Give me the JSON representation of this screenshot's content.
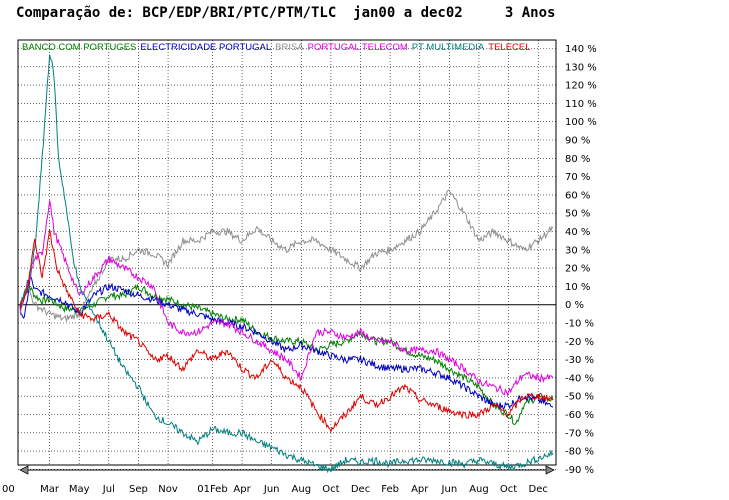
{
  "title": "Comparação de: BCP/EDP/BRI/PTC/PTM/TLC  jan00 a dec02     3 Anos",
  "chart_data": {
    "type": "line",
    "title": "Comparação de: BCP/EDP/BRI/PTC/PTM/TLC  jan00 a dec02     3 Anos",
    "xlabel": "",
    "ylabel": "",
    "ylim": [
      -90,
      145
    ],
    "y_ticks": [
      "140 %",
      "130 %",
      "120 %",
      "110 %",
      "100 %",
      "90 %",
      "80 %",
      "70 %",
      "60 %",
      "50 %",
      "40 %",
      "30 %",
      "20 %",
      "10 %",
      "0 %",
      "-10 %",
      "-20 %",
      "-30 %",
      "-40 %",
      "-50 %",
      "-60 %",
      "-70 %",
      "-80 %",
      "-90 %"
    ],
    "x_ticks": [
      "00",
      "Mar",
      "May",
      "Jul",
      "Sep",
      "Nov",
      "01Feb",
      "Apr",
      "Jun",
      "Aug",
      "Oct",
      "Dec",
      "Feb",
      "Apr",
      "Jun",
      "Aug",
      "Oct",
      "Dec"
    ],
    "grid": true,
    "legend_position": "top-left",
    "x_months": [
      0,
      2,
      4,
      6,
      8,
      10,
      13,
      15,
      17,
      19,
      21,
      23,
      25,
      27,
      29,
      31,
      33,
      35,
      36
    ],
    "series": [
      {
        "name": "BANCO COM PORTUGES",
        "color": "#008000",
        "values": [
          [
            0,
            0
          ],
          [
            0.5,
            12
          ],
          [
            1,
            5
          ],
          [
            1.5,
            2
          ],
          [
            2,
            3
          ],
          [
            3,
            -2
          ],
          [
            4,
            -3
          ],
          [
            5,
            0
          ],
          [
            6,
            5
          ],
          [
            7,
            5
          ],
          [
            8,
            10
          ],
          [
            9,
            5
          ],
          [
            10,
            3
          ],
          [
            11,
            0
          ],
          [
            12,
            -2
          ],
          [
            13,
            -5
          ],
          [
            14,
            -8
          ],
          [
            15,
            -8
          ],
          [
            16,
            -15
          ],
          [
            17,
            -18
          ],
          [
            18,
            -20
          ],
          [
            19,
            -20
          ],
          [
            20,
            -25
          ],
          [
            21,
            -22
          ],
          [
            22,
            -20
          ],
          [
            23,
            -15
          ],
          [
            24,
            -20
          ],
          [
            25,
            -20
          ],
          [
            26,
            -25
          ],
          [
            27,
            -28
          ],
          [
            28,
            -30
          ],
          [
            29,
            -35
          ],
          [
            30,
            -40
          ],
          [
            31,
            -45
          ],
          [
            32,
            -55
          ],
          [
            33,
            -60
          ],
          [
            33.5,
            -65
          ],
          [
            34,
            -55
          ],
          [
            35,
            -50
          ],
          [
            36,
            -52
          ]
        ]
      },
      {
        "name": "ELECTRICIDADE PORTUGAL",
        "color": "#0000c0",
        "values": [
          [
            0,
            -2
          ],
          [
            0.3,
            -8
          ],
          [
            0.7,
            15
          ],
          [
            1,
            8
          ],
          [
            2,
            5
          ],
          [
            3,
            2
          ],
          [
            4,
            -5
          ],
          [
            5,
            5
          ],
          [
            6,
            10
          ],
          [
            7,
            8
          ],
          [
            8,
            5
          ],
          [
            9,
            3
          ],
          [
            10,
            0
          ],
          [
            11,
            -3
          ],
          [
            12,
            -5
          ],
          [
            13,
            -8
          ],
          [
            14,
            -10
          ],
          [
            15,
            -12
          ],
          [
            16,
            -15
          ],
          [
            17,
            -20
          ],
          [
            18,
            -25
          ],
          [
            19,
            -22
          ],
          [
            20,
            -25
          ],
          [
            21,
            -28
          ],
          [
            22,
            -30
          ],
          [
            23,
            -30
          ],
          [
            24,
            -33
          ],
          [
            25,
            -35
          ],
          [
            26,
            -35
          ],
          [
            27,
            -35
          ],
          [
            28,
            -37
          ],
          [
            29,
            -40
          ],
          [
            30,
            -45
          ],
          [
            31,
            -50
          ],
          [
            32,
            -55
          ],
          [
            33,
            -55
          ],
          [
            34,
            -50
          ],
          [
            35,
            -52
          ],
          [
            36,
            -56
          ]
        ]
      },
      {
        "name": "BRISA",
        "color": "#909090",
        "values": [
          [
            0,
            -3
          ],
          [
            0.5,
            10
          ],
          [
            1,
            0
          ],
          [
            2,
            -5
          ],
          [
            3,
            -8
          ],
          [
            4,
            -5
          ],
          [
            5,
            10
          ],
          [
            6,
            25
          ],
          [
            7,
            25
          ],
          [
            8,
            30
          ],
          [
            9,
            28
          ],
          [
            10,
            22
          ],
          [
            11,
            35
          ],
          [
            12,
            35
          ],
          [
            13,
            40
          ],
          [
            14,
            40
          ],
          [
            15,
            35
          ],
          [
            16,
            42
          ],
          [
            17,
            35
          ],
          [
            18,
            30
          ],
          [
            19,
            35
          ],
          [
            20,
            35
          ],
          [
            21,
            30
          ],
          [
            22,
            25
          ],
          [
            23,
            20
          ],
          [
            24,
            28
          ],
          [
            25,
            30
          ],
          [
            26,
            35
          ],
          [
            27,
            40
          ],
          [
            28,
            50
          ],
          [
            29,
            62
          ],
          [
            30,
            50
          ],
          [
            31,
            35
          ],
          [
            32,
            40
          ],
          [
            33,
            35
          ],
          [
            34,
            30
          ],
          [
            35,
            35
          ],
          [
            36,
            42
          ]
        ]
      },
      {
        "name": "PORTUGAL TELECOM",
        "color": "#e000e0",
        "values": [
          [
            0,
            -5
          ],
          [
            0.5,
            10
          ],
          [
            1,
            25
          ],
          [
            1.5,
            28
          ],
          [
            2,
            58
          ],
          [
            2.3,
            40
          ],
          [
            3,
            25
          ],
          [
            4,
            5
          ],
          [
            5,
            15
          ],
          [
            6,
            25
          ],
          [
            7,
            20
          ],
          [
            8,
            15
          ],
          [
            9,
            10
          ],
          [
            10,
            -10
          ],
          [
            11,
            -15
          ],
          [
            12,
            -15
          ],
          [
            13,
            -10
          ],
          [
            14,
            -10
          ],
          [
            15,
            -15
          ],
          [
            16,
            -20
          ],
          [
            17,
            -25
          ],
          [
            18,
            -30
          ],
          [
            19,
            -40
          ],
          [
            20,
            -15
          ],
          [
            21,
            -15
          ],
          [
            22,
            -18
          ],
          [
            23,
            -15
          ],
          [
            24,
            -20
          ],
          [
            25,
            -20
          ],
          [
            26,
            -25
          ],
          [
            27,
            -25
          ],
          [
            28,
            -25
          ],
          [
            29,
            -30
          ],
          [
            30,
            -35
          ],
          [
            31,
            -42
          ],
          [
            32,
            -45
          ],
          [
            33,
            -48
          ],
          [
            34,
            -38
          ],
          [
            35,
            -40
          ],
          [
            36,
            -40
          ]
        ]
      },
      {
        "name": "PT MULTIMEDIA",
        "color": "#008080",
        "values": [
          [
            0,
            0
          ],
          [
            0.5,
            8
          ],
          [
            1,
            30
          ],
          [
            1.5,
            80
          ],
          [
            2,
            138
          ],
          [
            2.3,
            125
          ],
          [
            2.6,
            80
          ],
          [
            3,
            60
          ],
          [
            3.5,
            30
          ],
          [
            4,
            10
          ],
          [
            5,
            -5
          ],
          [
            6,
            -20
          ],
          [
            7,
            -35
          ],
          [
            8,
            -45
          ],
          [
            9,
            -60
          ],
          [
            10,
            -65
          ],
          [
            11,
            -70
          ],
          [
            12,
            -75
          ],
          [
            13,
            -68
          ],
          [
            14,
            -70
          ],
          [
            15,
            -70
          ],
          [
            16,
            -75
          ],
          [
            17,
            -78
          ],
          [
            18,
            -82
          ],
          [
            19,
            -85
          ],
          [
            20,
            -88
          ],
          [
            21,
            -90
          ],
          [
            22,
            -85
          ],
          [
            23,
            -86
          ],
          [
            24,
            -85
          ],
          [
            25,
            -87
          ],
          [
            26,
            -85
          ],
          [
            27,
            -85
          ],
          [
            28,
            -85
          ],
          [
            29,
            -86
          ],
          [
            30,
            -87
          ],
          [
            31,
            -85
          ],
          [
            32,
            -87
          ],
          [
            33,
            -89
          ],
          [
            34,
            -87
          ],
          [
            35,
            -84
          ],
          [
            36,
            -81
          ]
        ]
      },
      {
        "name": "TELECEL",
        "color": "#e00000",
        "values": [
          [
            0,
            -2
          ],
          [
            0.5,
            10
          ],
          [
            1,
            35
          ],
          [
            1.5,
            15
          ],
          [
            2,
            40
          ],
          [
            2.5,
            20
          ],
          [
            3,
            10
          ],
          [
            4,
            -5
          ],
          [
            5,
            -8
          ],
          [
            6,
            -5
          ],
          [
            7,
            -15
          ],
          [
            8,
            -20
          ],
          [
            9,
            -30
          ],
          [
            10,
            -28
          ],
          [
            11,
            -35
          ],
          [
            12,
            -25
          ],
          [
            13,
            -30
          ],
          [
            14,
            -25
          ],
          [
            15,
            -35
          ],
          [
            16,
            -40
          ],
          [
            17,
            -30
          ],
          [
            18,
            -40
          ],
          [
            19,
            -45
          ],
          [
            20,
            -58
          ],
          [
            21,
            -68
          ],
          [
            22,
            -60
          ],
          [
            23,
            -50
          ],
          [
            24,
            -55
          ],
          [
            25,
            -50
          ],
          [
            26,
            -45
          ],
          [
            27,
            -52
          ],
          [
            28,
            -55
          ],
          [
            29,
            -58
          ],
          [
            30,
            -60
          ],
          [
            31,
            -60
          ],
          [
            32,
            -55
          ],
          [
            33,
            -60
          ],
          [
            34,
            -50
          ],
          [
            35,
            -50
          ],
          [
            36,
            -52
          ]
        ]
      }
    ]
  }
}
